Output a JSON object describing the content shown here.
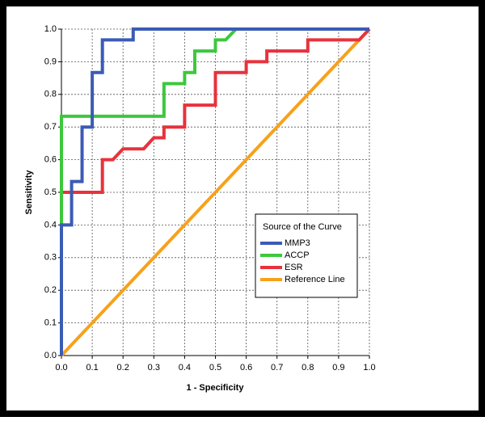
{
  "chart_data": {
    "type": "line",
    "xlabel": "1 - Specificity",
    "ylabel": "Sensitivity",
    "xlim": [
      0,
      1
    ],
    "ylim": [
      0,
      1
    ],
    "xticks": [
      {
        "value": 0,
        "label": "0.0"
      },
      0.1,
      0.2,
      0.3,
      0.4,
      0.5,
      0.6,
      0.7,
      0.8,
      0.9,
      {
        "value": 1,
        "label": "1.0"
      }
    ],
    "yticks": [
      {
        "value": 0,
        "label": "0.0"
      },
      0.1,
      0.2,
      0.3,
      0.4,
      0.5,
      0.6,
      0.7,
      0.8,
      0.9,
      {
        "value": 1,
        "label": "1.0"
      }
    ],
    "grid": true,
    "legend_title": "Source of the Curve",
    "legend_position": "lower right",
    "series": [
      {
        "name": "MMP3",
        "color": "#3b5bb5",
        "x": [
          0,
          0,
          0.033,
          0.033,
          0.067,
          0.067,
          0.1,
          0.1,
          0.133,
          0.133,
          0.233,
          0.233,
          1
        ],
        "values": [
          0,
          0.4,
          0.4,
          0.533,
          0.533,
          0.7,
          0.7,
          0.867,
          0.867,
          0.967,
          0.967,
          1,
          1
        ]
      },
      {
        "name": "ACCP",
        "color": "#3cc83c",
        "x": [
          0,
          0,
          0.333,
          0.333,
          0.4,
          0.4,
          0.433,
          0.433,
          0.5,
          0.5,
          0.533,
          0.567,
          1
        ],
        "values": [
          0,
          0.733,
          0.733,
          0.833,
          0.833,
          0.867,
          0.867,
          0.933,
          0.933,
          0.967,
          0.967,
          1,
          1
        ]
      },
      {
        "name": "ESR",
        "color": "#e8323c",
        "x": [
          0,
          0,
          0.133,
          0.133,
          0.167,
          0.2,
          0.233,
          0.267,
          0.3,
          0.333,
          0.333,
          0.4,
          0.4,
          0.5,
          0.5,
          0.6,
          0.6,
          0.667,
          0.667,
          0.8,
          0.8,
          0.967,
          1
        ],
        "values": [
          0,
          0.5,
          0.5,
          0.6,
          0.6,
          0.633,
          0.633,
          0.633,
          0.667,
          0.667,
          0.7,
          0.7,
          0.767,
          0.767,
          0.867,
          0.867,
          0.9,
          0.9,
          0.933,
          0.933,
          0.967,
          0.967,
          1
        ]
      },
      {
        "name": "Reference Line",
        "color": "#f7a11a",
        "x": [
          0,
          1
        ],
        "values": [
          0,
          1
        ]
      }
    ]
  }
}
